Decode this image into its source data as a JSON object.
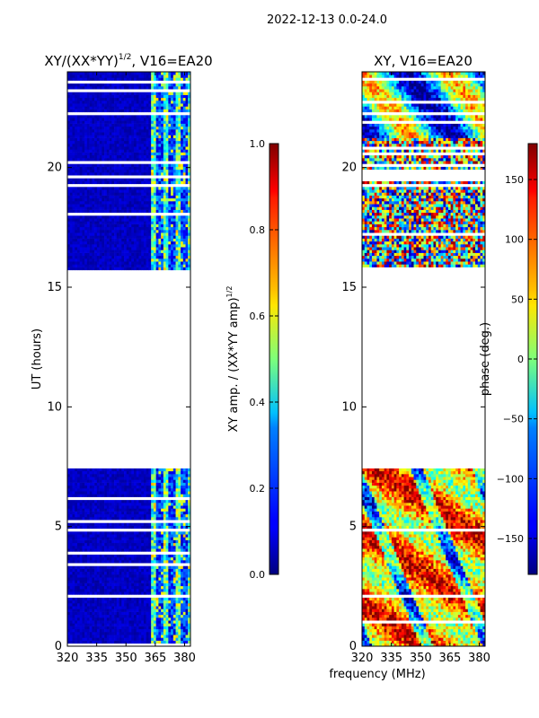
{
  "suptitle": "2022-12-13 0.0-24.0",
  "shared_xlabel": "frequency (MHz)",
  "chart_data": [
    {
      "type": "heatmap",
      "title_main": "XY/(XX*YY)",
      "title_sup": "1/2",
      "title_suffix": ", V16=EA20",
      "ylabel": "UT (hours)",
      "xlim": [
        320,
        383
      ],
      "ylim": [
        0,
        24
      ],
      "xticks": [
        "320",
        "335",
        "350",
        "365",
        "380"
      ],
      "xtick_values": [
        320,
        335,
        350,
        365,
        380
      ],
      "yticks": [
        "0",
        "5",
        "10",
        "15",
        "20"
      ],
      "ytick_values": [
        0,
        5,
        10,
        15,
        20
      ],
      "data_gaps_hours": [
        [
          7.5,
          15.7
        ]
      ],
      "colorbar": {
        "label_main": "XY amp. / (XX*YY amp)",
        "label_sup": "1/2",
        "min": 0.0,
        "max": 1.0,
        "ticks": [
          "0.0",
          "0.2",
          "0.4",
          "0.6",
          "0.8",
          "1.0"
        ],
        "tick_values": [
          0.0,
          0.2,
          0.4,
          0.6,
          0.8,
          1.0
        ],
        "colormap": "jet"
      }
    },
    {
      "type": "heatmap",
      "title_main": "XY",
      "title_suffix": ", V16=EA20",
      "ylabel": "",
      "xlim": [
        320,
        383
      ],
      "ylim": [
        0,
        24
      ],
      "xticks": [
        "320",
        "335",
        "350",
        "365",
        "380"
      ],
      "xtick_values": [
        320,
        335,
        350,
        365,
        380
      ],
      "yticks": [
        "0",
        "5",
        "10",
        "15",
        "20"
      ],
      "ytick_values": [
        0,
        5,
        10,
        15,
        20
      ],
      "data_gaps_hours": [
        [
          7.5,
          15.7
        ]
      ],
      "colorbar": {
        "label_main": "phase (deg.)",
        "min": -180,
        "max": 180,
        "ticks": [
          "−150",
          "−100",
          "−50",
          "0",
          "50",
          "100",
          "150"
        ],
        "tick_values": [
          -150,
          -100,
          -50,
          0,
          50,
          100,
          150
        ],
        "colormap": "jet"
      }
    }
  ]
}
